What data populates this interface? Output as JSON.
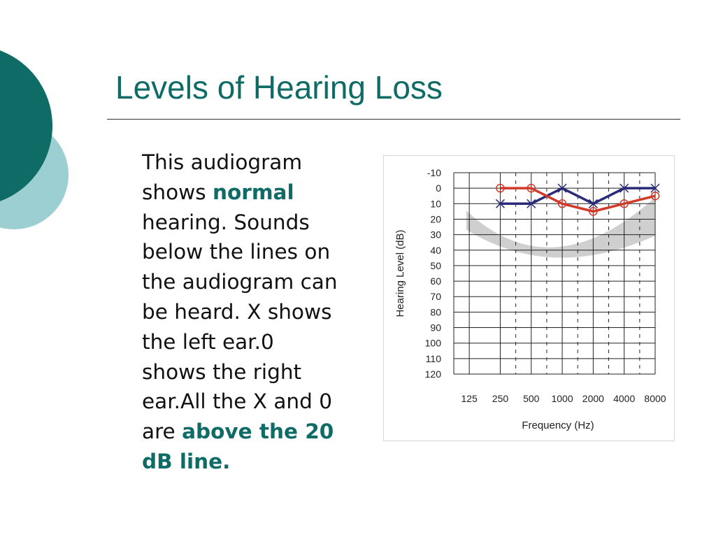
{
  "slide": {
    "title": "Levels of Hearing Loss",
    "body_lines": [
      [
        {
          "text": "This audiogram"
        }
      ],
      [
        {
          "text": "shows "
        },
        {
          "text": "normal",
          "emphasis": true
        }
      ],
      [
        {
          "text": "hearing. Sounds"
        }
      ],
      [
        {
          "text": "below the lines on"
        }
      ],
      [
        {
          "text": "the audiogram can"
        }
      ],
      [
        {
          "text": "be heard. X shows"
        }
      ],
      [
        {
          "text": "the left ear.0"
        }
      ],
      [
        {
          "text": "shows the right"
        }
      ],
      [
        {
          "text": "ear.All the X and 0"
        }
      ],
      [
        {
          "text": "are "
        },
        {
          "text": "above the 20",
          "emphasis": true
        }
      ],
      [
        {
          "text": "dB line.",
          "emphasis": true
        }
      ]
    ],
    "colors": {
      "title": "#0e6b66",
      "emphasis": "#0e6b66",
      "deco_dark": "#0e6b66",
      "deco_light": "#9ccfd1"
    }
  },
  "chart_data": {
    "type": "line",
    "xlabel": "Frequency (Hz)",
    "ylabel": "Hearing Level (dB)",
    "x_categories": [
      "125",
      "250",
      "500",
      "1000",
      "2000",
      "4000",
      "8000"
    ],
    "y_ticks": [
      -10,
      0,
      10,
      20,
      30,
      40,
      50,
      60,
      70,
      80,
      90,
      100,
      110,
      120
    ],
    "y_range": [
      -10,
      120
    ],
    "y_inverted": true,
    "grid": true,
    "series": [
      {
        "marker": "x",
        "color": "#2a2a7a",
        "x": [
          "250",
          "500",
          "1000",
          "2000",
          "4000",
          "8000"
        ],
        "values": [
          10,
          10,
          0,
          10,
          0,
          0
        ]
      },
      {
        "marker": "o",
        "color": "#d23a2a",
        "x": [
          "250",
          "500",
          "1000",
          "2000",
          "4000",
          "8000"
        ],
        "values": [
          0,
          0,
          10,
          15,
          10,
          5
        ]
      }
    ]
  }
}
